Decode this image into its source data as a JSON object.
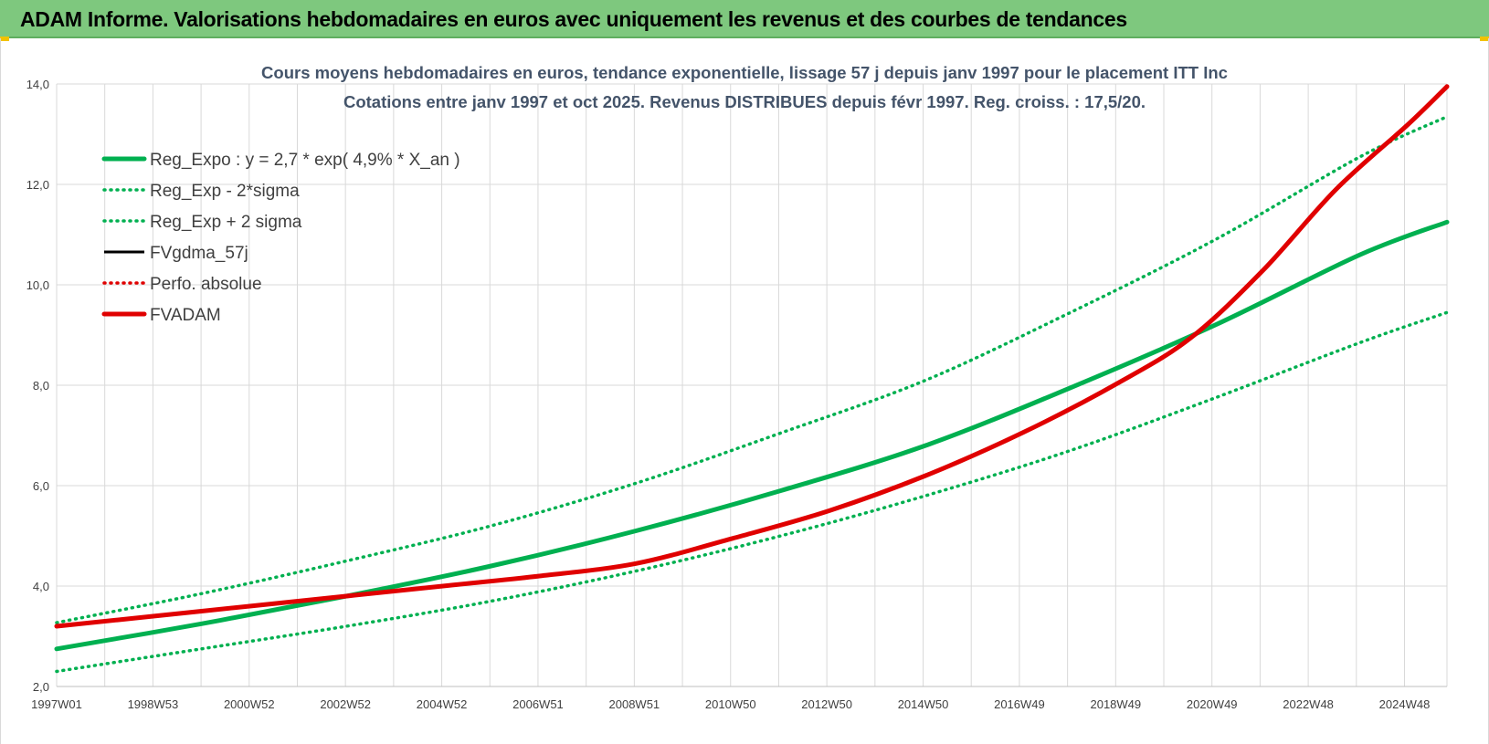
{
  "banner": {
    "title": "ADAM Informe. Valorisations hebdomadaires en euros avec uniquement les revenus et des courbes de tendances"
  },
  "colors": {
    "banner": "#7ec87e",
    "green": "#00b050",
    "red": "#e00000",
    "black": "#000000",
    "title": "#44546a",
    "grid": "#d9d9d9"
  },
  "chart_data": {
    "type": "line",
    "title": "Cours moyens hebdomadaires en euros, tendance exponentielle, lissage 57 j depuis janv 1997 pour le placement ITT Inc",
    "subtitle": "Cotations entre janv 1997 et oct 2025. Revenus DISTRIBUES depuis févr 1997. Reg. croiss. : 17,5/20.",
    "xlabel": "",
    "ylabel": "",
    "ylim": [
      2.0,
      14.0
    ],
    "xlim": [
      1997.0,
      2025.8
    ],
    "y_ticks": [
      "2,0",
      "4,0",
      "6,0",
      "8,0",
      "10,0",
      "12,0",
      "14,0"
    ],
    "x_ticks": [
      "1997W01",
      "1998W53",
      "2000W52",
      "2002W52",
      "2004W52",
      "2006W51",
      "2008W51",
      "2010W50",
      "2012W50",
      "2014W50",
      "2016W49",
      "2018W49",
      "2020W49",
      "2022W48",
      "2024W48"
    ],
    "grid": true,
    "legend_position": "top-left",
    "series": [
      {
        "name": "Reg_Expo : y = 2,7 * exp( 4,9% *  X_an )",
        "style": "solid-thick",
        "color": "#00b050",
        "x": [
          1997,
          2000,
          2003,
          2006,
          2009,
          2012,
          2015,
          2018,
          2021,
          2024,
          2025.8
        ],
        "y": [
          2.75,
          3.25,
          3.8,
          4.4,
          5.1,
          5.9,
          6.8,
          7.95,
          9.2,
          10.6,
          11.25
        ]
      },
      {
        "name": "Reg_Exp - 2*sigma",
        "style": "dotted",
        "color": "#00b050",
        "x": [
          1997,
          2000,
          2003,
          2006,
          2009,
          2012,
          2015,
          2018,
          2021,
          2024,
          2025.8
        ],
        "y": [
          2.3,
          2.75,
          3.2,
          3.7,
          4.3,
          5.0,
          5.8,
          6.7,
          7.75,
          8.85,
          9.45
        ]
      },
      {
        "name": "Reg_Exp + 2 sigma",
        "style": "dotted",
        "color": "#00b050",
        "x": [
          1997,
          2000,
          2003,
          2006,
          2009,
          2012,
          2015,
          2018,
          2021,
          2024,
          2025.8
        ],
        "y": [
          3.27,
          3.85,
          4.5,
          5.2,
          6.05,
          7.05,
          8.1,
          9.45,
          10.9,
          12.55,
          13.35
        ]
      },
      {
        "name": "FVgdma_57j",
        "style": "solid",
        "color": "#000000",
        "x": [
          1997,
          1999,
          2001,
          2003,
          2005,
          2007,
          2009,
          2011,
          2013,
          2015,
          2017,
          2019,
          2020.5,
          2022,
          2023.5,
          2025,
          2025.8
        ],
        "y": [
          3.2,
          3.4,
          3.6,
          3.8,
          4.0,
          4.2,
          4.45,
          4.95,
          5.5,
          6.2,
          7.05,
          8.05,
          8.95,
          10.3,
          11.9,
          13.2,
          13.95
        ]
      },
      {
        "name": "Perfo. absolue",
        "style": "dotted",
        "color": "#e00000",
        "x": [
          1997,
          1999,
          2001,
          2003,
          2005,
          2007,
          2009,
          2011,
          2013,
          2015,
          2017,
          2019,
          2020.5,
          2022,
          2023.5,
          2025,
          2025.8
        ],
        "y": [
          3.2,
          3.4,
          3.6,
          3.8,
          4.0,
          4.2,
          4.45,
          4.95,
          5.5,
          6.2,
          7.05,
          8.05,
          8.95,
          10.3,
          11.9,
          13.2,
          13.95
        ]
      },
      {
        "name": "FVADAM",
        "style": "solid-thick",
        "color": "#e00000",
        "x": [
          1997,
          1999,
          2001,
          2003,
          2005,
          2007,
          2009,
          2011,
          2013,
          2015,
          2017,
          2019,
          2020.5,
          2022,
          2023.5,
          2025,
          2025.8
        ],
        "y": [
          3.2,
          3.4,
          3.6,
          3.8,
          4.0,
          4.2,
          4.45,
          4.95,
          5.5,
          6.2,
          7.05,
          8.05,
          8.95,
          10.3,
          11.9,
          13.2,
          13.95
        ]
      }
    ]
  }
}
